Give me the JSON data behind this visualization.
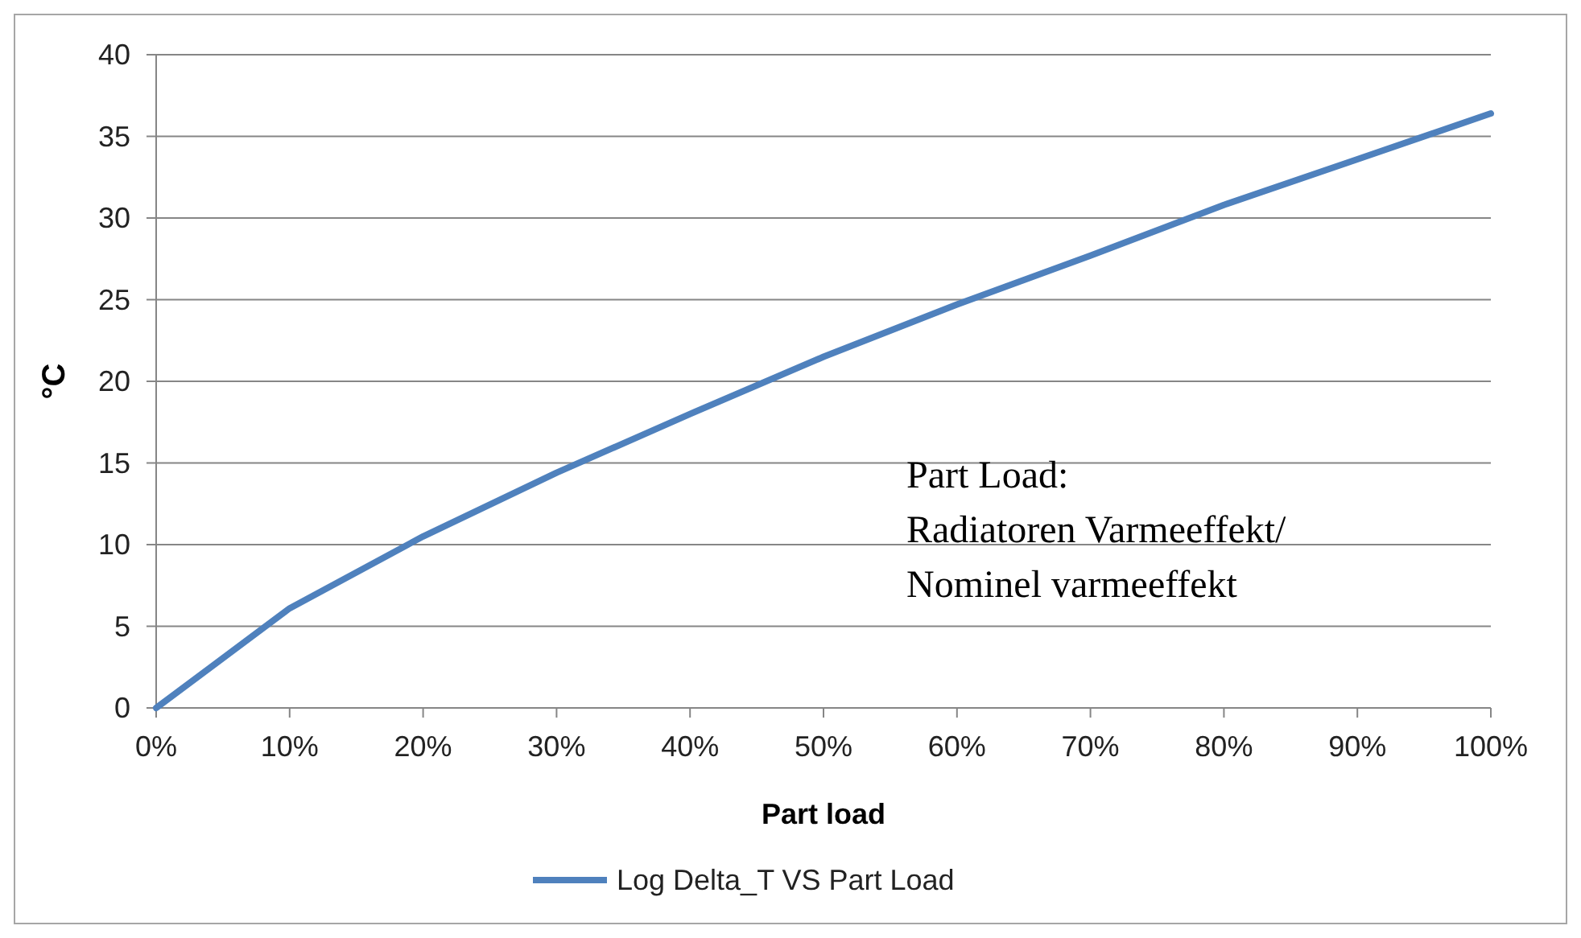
{
  "chart_data": {
    "type": "line",
    "xlabel": "Part load",
    "ylabel": "°C",
    "x": [
      0,
      10,
      20,
      30,
      40,
      50,
      60,
      70,
      80,
      90,
      100
    ],
    "series": [
      {
        "name": "Log Delta_T VS Part Load",
        "color": "#4f81bd",
        "values": [
          0,
          6.1,
          10.5,
          14.4,
          18.0,
          21.5,
          24.7,
          27.7,
          30.8,
          33.6,
          36.4
        ]
      }
    ],
    "xlim": [
      0,
      100
    ],
    "xticks": [
      {
        "value": 0,
        "label": "0%"
      },
      {
        "value": 10,
        "label": "10%"
      },
      {
        "value": 20,
        "label": "20%"
      },
      {
        "value": 30,
        "label": "30%"
      },
      {
        "value": 40,
        "label": "40%"
      },
      {
        "value": 50,
        "label": "50%"
      },
      {
        "value": 60,
        "label": "60%"
      },
      {
        "value": 70,
        "label": "70%"
      },
      {
        "value": 80,
        "label": "80%"
      },
      {
        "value": 90,
        "label": "90%"
      },
      {
        "value": 100,
        "label": "100%"
      }
    ],
    "ylim": [
      0,
      40
    ],
    "yticks": [
      0,
      5,
      10,
      15,
      20,
      25,
      30,
      35,
      40
    ],
    "grid": "y",
    "legend": "bottom",
    "marker": "none",
    "line_style": "solid",
    "annotations": [
      "Part Load:\nRadiatoren Varmeeffekt/\nNominel varmeeffekt"
    ]
  }
}
